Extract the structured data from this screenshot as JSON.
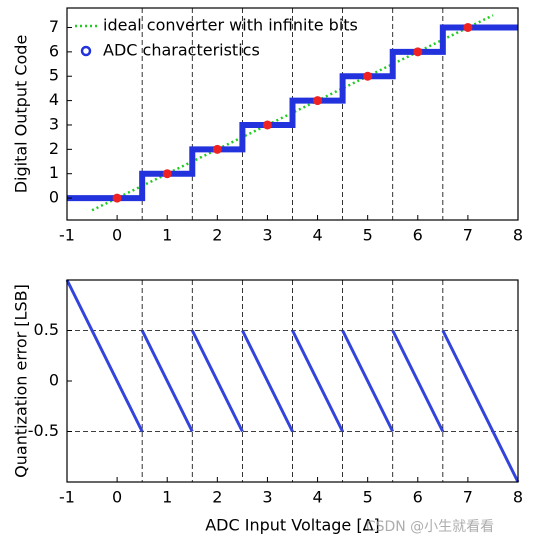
{
  "chart_data": [
    {
      "type": "line",
      "ylabel": "Digital Output Code",
      "xlim": [
        -1,
        8
      ],
      "xticks": [
        -1,
        0,
        1,
        2,
        3,
        4,
        5,
        6,
        7,
        8
      ],
      "ylim": [
        -0.9,
        7.8
      ],
      "yticks": [
        0,
        1,
        2,
        3,
        4,
        5,
        6,
        7
      ],
      "vlines": [
        0.5,
        1.5,
        2.5,
        3.5,
        4.5,
        5.5,
        6.5
      ],
      "legend": "upper left",
      "series": [
        {
          "name": "ideal converter with infinite bits",
          "color": "#22cc22",
          "style": "dotted",
          "x": [
            -0.5,
            7.5
          ],
          "values": [
            -0.5,
            7.5
          ]
        },
        {
          "name": "ADC characteristics",
          "color": "#2233dd",
          "style": "thick",
          "x": [
            -1,
            0.5,
            0.5,
            1.5,
            1.5,
            2.5,
            2.5,
            3.5,
            3.5,
            4.5,
            4.5,
            5.5,
            5.5,
            6.5,
            6.5,
            8
          ],
          "values": [
            0,
            0,
            1,
            1,
            2,
            2,
            3,
            3,
            4,
            4,
            5,
            5,
            6,
            6,
            7,
            7
          ]
        }
      ],
      "points": {
        "color": "#ee2222",
        "x": [
          0,
          1,
          2,
          3,
          4,
          5,
          6,
          7
        ],
        "values": [
          0,
          1,
          2,
          3,
          4,
          5,
          6,
          7
        ]
      }
    },
    {
      "type": "line",
      "ylabel": "Quantization error  [LSB]",
      "xlabel": "ADC Input Voltage [Δ]",
      "xlim": [
        -1,
        8
      ],
      "xticks": [
        -1,
        0,
        1,
        2,
        3,
        4,
        5,
        6,
        7,
        8
      ],
      "ylim": [
        -1,
        1
      ],
      "yticks": [
        -0.5,
        0,
        0.5
      ],
      "vlines": [
        0.5,
        1.5,
        2.5,
        3.5,
        4.5,
        5.5,
        6.5
      ],
      "hlines": [
        -0.5,
        0.5
      ],
      "series": [
        {
          "color": "#3344dd",
          "style": "solid",
          "x": [
            -1,
            0.5,
            null,
            0.5,
            1.5,
            null,
            1.5,
            2.5,
            null,
            2.5,
            3.5,
            null,
            3.5,
            4.5,
            null,
            4.5,
            5.5,
            null,
            5.5,
            6.5,
            null,
            6.5,
            8
          ],
          "values": [
            1,
            -0.5,
            null,
            0.5,
            -0.5,
            null,
            0.5,
            -0.5,
            null,
            0.5,
            -0.5,
            null,
            0.5,
            -0.5,
            null,
            0.5,
            -0.5,
            null,
            0.5,
            -0.5,
            null,
            0.5,
            -1
          ]
        }
      ]
    }
  ],
  "watermark": "CSDN @小生就看看"
}
